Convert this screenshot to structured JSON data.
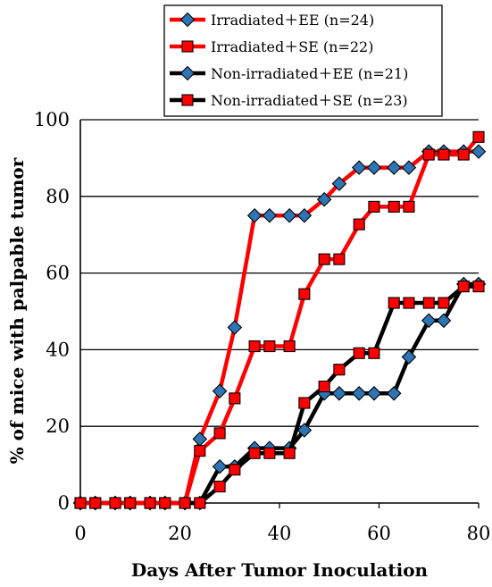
{
  "chart_data": {
    "type": "line",
    "title": "",
    "xlabel": "Days After Tumor Inoculation",
    "ylabel": "% of mice with palpable tumor",
    "xlim": [
      0,
      80
    ],
    "ylim": [
      0,
      100
    ],
    "xticks": [
      "0",
      "20",
      "40",
      "60",
      "80"
    ],
    "yticks": [
      "0",
      "20",
      "40",
      "60",
      "80",
      "100"
    ],
    "grid": "horizontal",
    "legend_position": "top",
    "series": [
      {
        "name": "Irradiated＋EE (n=24)",
        "line_color": "#ff0000",
        "marker": "diamond",
        "marker_color": "#2e75b6",
        "x": [
          0,
          3,
          7,
          10,
          14,
          17,
          21,
          24,
          28,
          31,
          35,
          38,
          42,
          45,
          49,
          52,
          56,
          59,
          63,
          66,
          70,
          73,
          77,
          80
        ],
        "y": [
          0,
          0,
          0,
          0,
          0,
          0,
          0,
          16.7,
          29.2,
          45.8,
          75,
          75,
          75,
          75,
          79.2,
          83.3,
          87.5,
          87.5,
          87.5,
          87.5,
          91.7,
          91.7,
          91.7,
          91.7
        ]
      },
      {
        "name": "Irradiated＋SE (n=22)",
        "line_color": "#ff0000",
        "marker": "square",
        "marker_color": "#ff0000",
        "x": [
          0,
          3,
          7,
          10,
          14,
          17,
          21,
          24,
          28,
          31,
          35,
          38,
          42,
          45,
          49,
          52,
          56,
          59,
          63,
          66,
          70,
          73,
          77,
          80
        ],
        "y": [
          0,
          0,
          0,
          0,
          0,
          0,
          0,
          13.6,
          18.2,
          27.3,
          40.9,
          40.9,
          40.9,
          54.5,
          63.6,
          63.6,
          72.7,
          77.3,
          77.3,
          77.3,
          90.9,
          90.9,
          90.9,
          95.5
        ]
      },
      {
        "name": "Non-irradiated＋EE (n=21)",
        "line_color": "#000000",
        "marker": "diamond",
        "marker_color": "#2e75b6",
        "x": [
          0,
          3,
          7,
          10,
          14,
          17,
          21,
          24,
          28,
          31,
          35,
          38,
          42,
          45,
          49,
          52,
          56,
          59,
          63,
          66,
          70,
          73,
          77,
          80
        ],
        "y": [
          0,
          0,
          0,
          0,
          0,
          0,
          0,
          0,
          9.5,
          9.5,
          14.3,
          14.3,
          14.3,
          19,
          28.6,
          28.6,
          28.6,
          28.6,
          28.6,
          38.1,
          47.6,
          47.6,
          57.1,
          57.1
        ]
      },
      {
        "name": "Non-irradiated＋SE (n=23)",
        "line_color": "#000000",
        "marker": "square",
        "marker_color": "#ff0000",
        "x": [
          0,
          3,
          7,
          10,
          14,
          17,
          21,
          24,
          28,
          31,
          35,
          38,
          42,
          45,
          49,
          52,
          56,
          59,
          63,
          66,
          70,
          73,
          77,
          80
        ],
        "y": [
          0,
          0,
          0,
          0,
          0,
          0,
          0,
          0,
          4.3,
          8.7,
          13,
          13,
          13,
          26.1,
          30.4,
          34.8,
          39.1,
          39.1,
          52.2,
          52.2,
          52.2,
          52.2,
          56.5,
          56.5
        ]
      }
    ]
  }
}
